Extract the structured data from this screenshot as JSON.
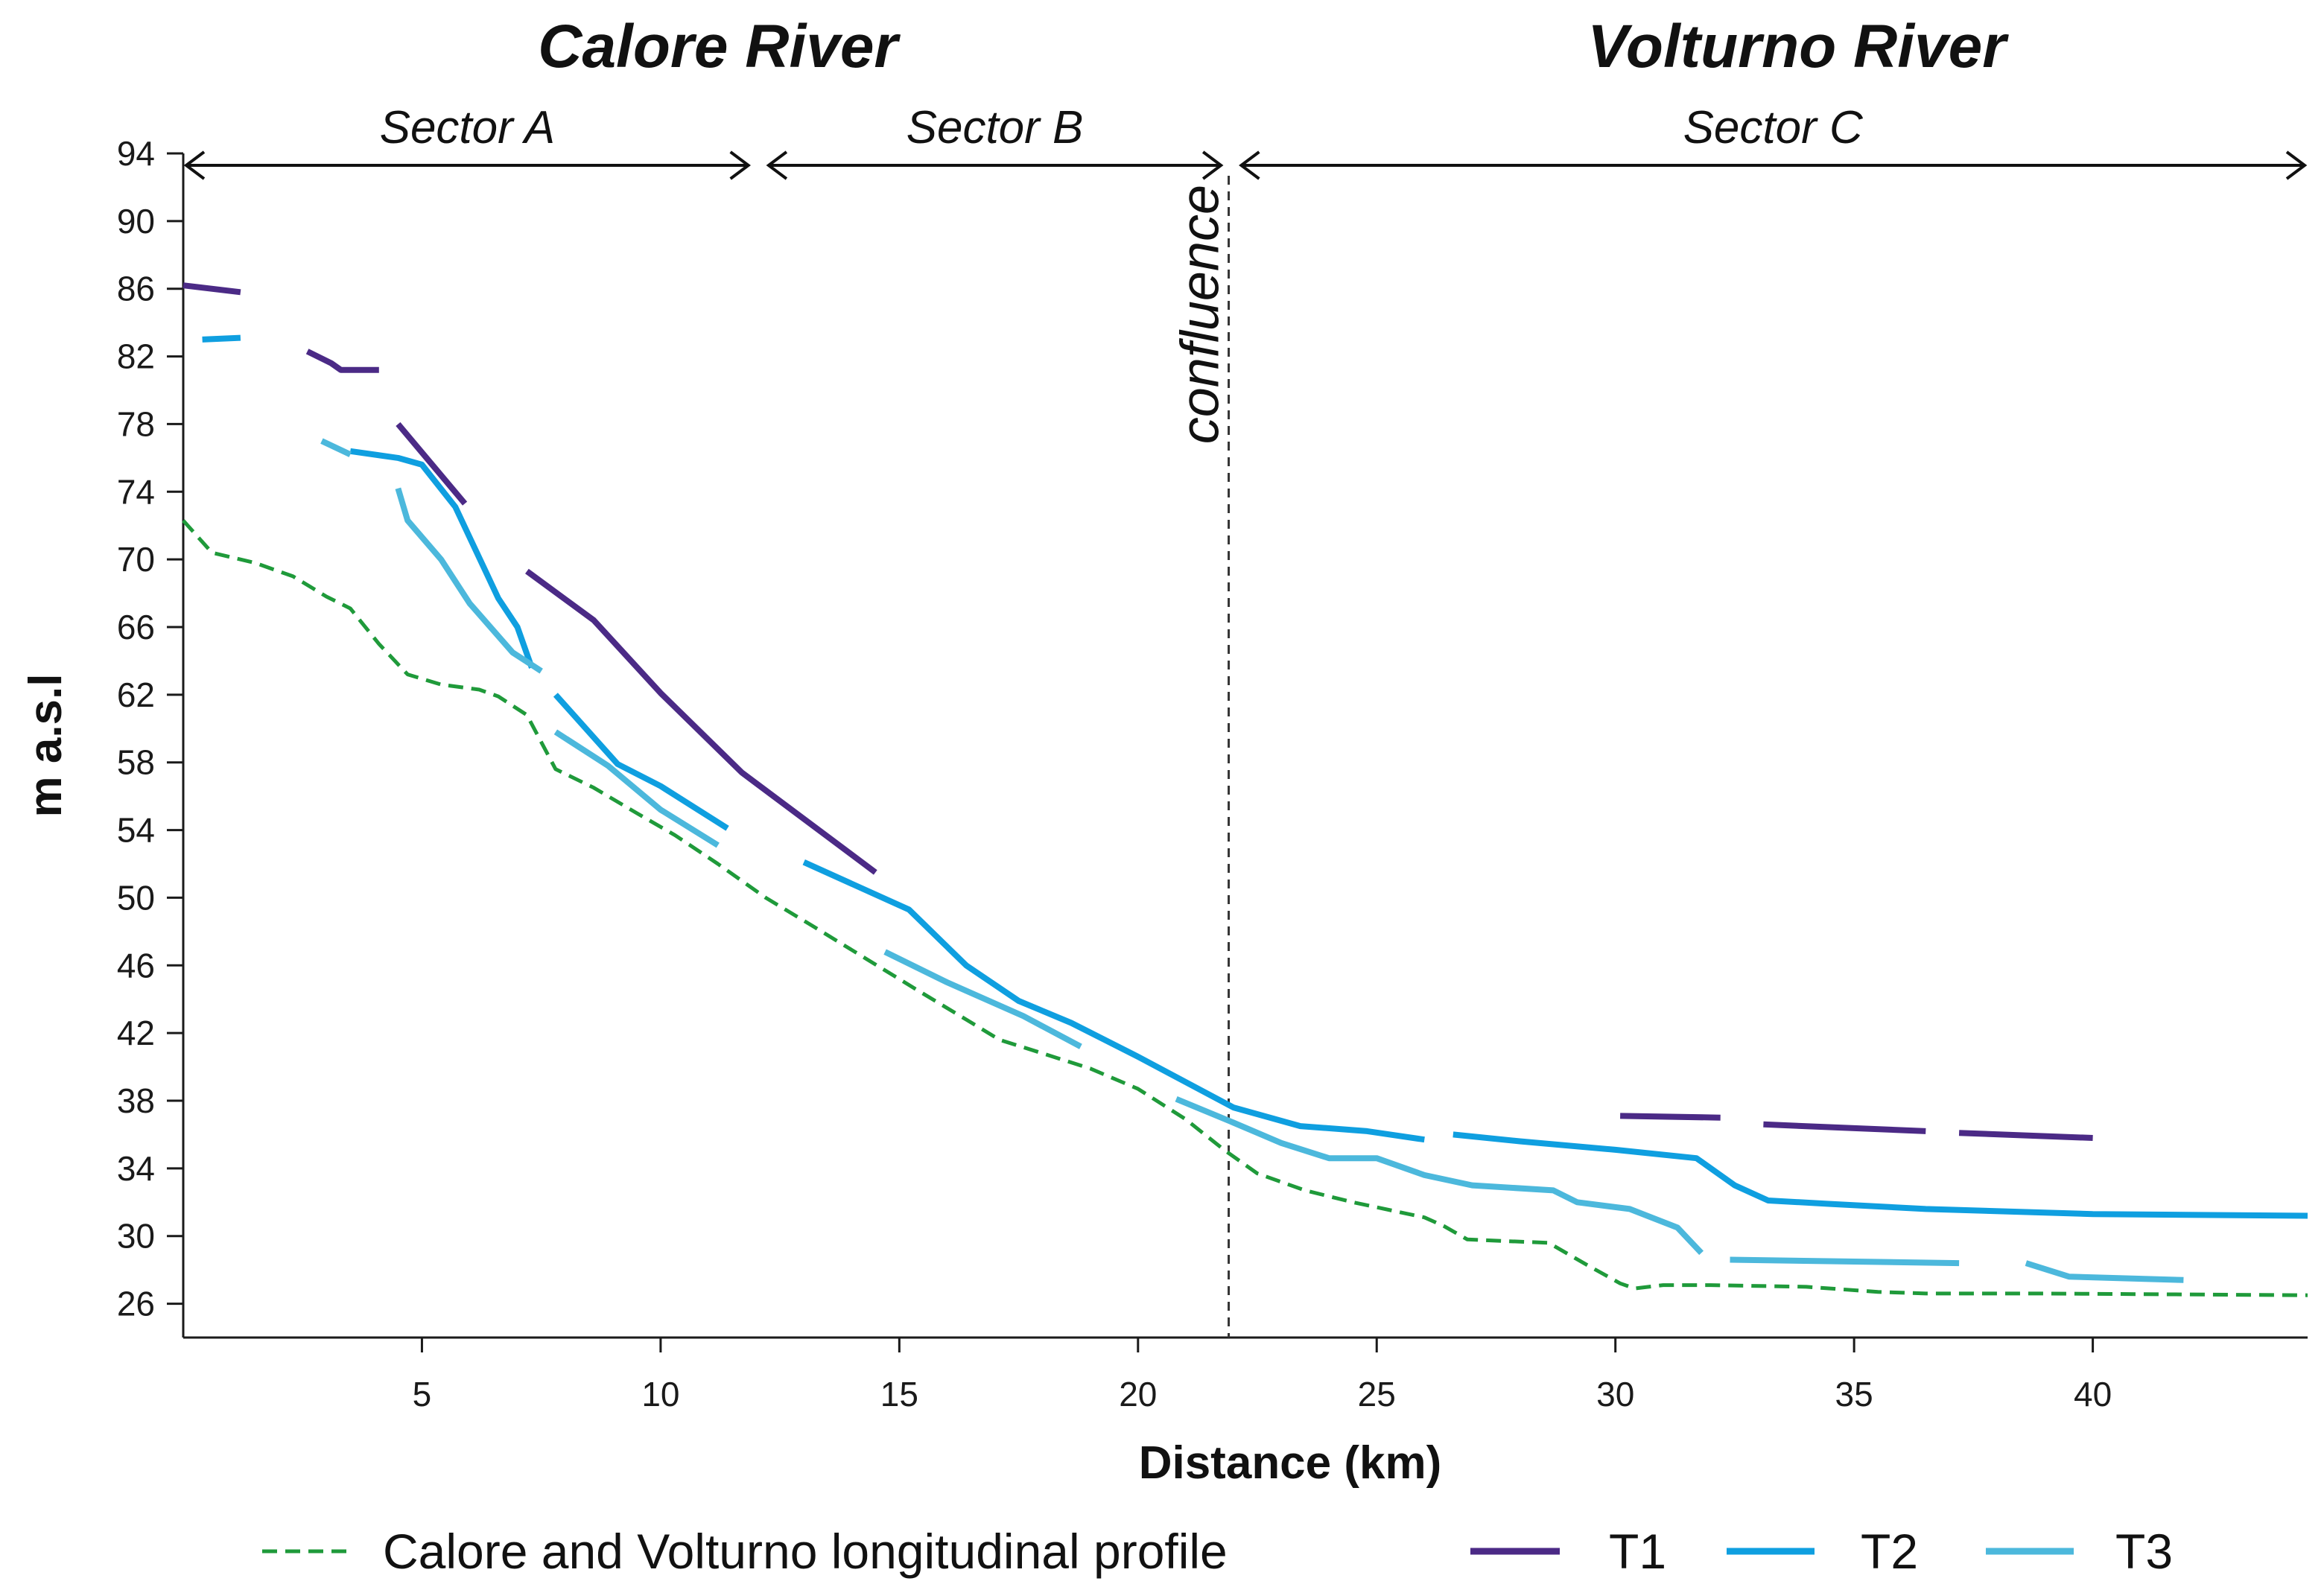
{
  "chart_data": {
    "type": "line",
    "title": "",
    "xlabel": "Distance (km)",
    "ylabel": "m a.s.l",
    "xlim": [
      0,
      44.5
    ],
    "ylim": [
      24,
      94
    ],
    "x_ticks": [
      5,
      10,
      15,
      20,
      25,
      30,
      35,
      40
    ],
    "y_ticks": [
      26,
      30,
      34,
      38,
      42,
      46,
      50,
      54,
      58,
      62,
      66,
      70,
      74,
      78,
      82,
      86,
      90,
      94
    ],
    "grid": false,
    "legend_position": "bottom",
    "river_labels": [
      {
        "text": "Calore River",
        "x": 11.2
      },
      {
        "text": "Volturno River",
        "x": 33.8
      }
    ],
    "sectors": [
      {
        "label": "Sector A",
        "x_start": 0,
        "x_end": 11.9
      },
      {
        "label": "Sector  B",
        "x_start": 12.2,
        "x_end": 21.8
      },
      {
        "label": "Sector  C",
        "x_start": 22.1,
        "x_end": 44.5
      }
    ],
    "confluence": {
      "label": "confluence",
      "x": 21.9
    },
    "series": [
      {
        "name": "Calore and Volturno longitudinal profile",
        "color": "#1f9a3a",
        "dash": "dashed",
        "segments": [
          [
            [
              0,
              72.3
            ],
            [
              0.6,
              70.4
            ],
            [
              1.5,
              69.8
            ],
            [
              2.3,
              69.0
            ],
            [
              3.0,
              67.8
            ],
            [
              3.5,
              67.1
            ],
            [
              4.1,
              65.0
            ],
            [
              4.7,
              63.2
            ],
            [
              5.4,
              62.6
            ],
            [
              6.2,
              62.3
            ],
            [
              6.6,
              61.9
            ],
            [
              7.2,
              60.8
            ],
            [
              7.8,
              57.6
            ],
            [
              8.6,
              56.5
            ],
            [
              9.5,
              55.0
            ],
            [
              10.3,
              53.7
            ],
            [
              11.2,
              52.0
            ],
            [
              12.2,
              50.0
            ],
            [
              13.2,
              48.3
            ],
            [
              14.3,
              46.4
            ],
            [
              15.4,
              44.5
            ],
            [
              16.4,
              42.8
            ],
            [
              17.1,
              41.6
            ],
            [
              18.0,
              40.8
            ],
            [
              19.0,
              39.9
            ],
            [
              20.0,
              38.7
            ],
            [
              21.0,
              36.9
            ],
            [
              21.8,
              35.1
            ],
            [
              22.5,
              33.7
            ],
            [
              23.5,
              32.7
            ],
            [
              24.5,
              32.0
            ],
            [
              25.5,
              31.4
            ],
            [
              26.0,
              31.1
            ],
            [
              26.4,
              30.6
            ],
            [
              26.9,
              29.8
            ],
            [
              27.7,
              29.7
            ],
            [
              28.6,
              29.6
            ],
            [
              29.4,
              28.3
            ],
            [
              30.1,
              27.2
            ],
            [
              30.4,
              26.9
            ],
            [
              31.0,
              27.1
            ],
            [
              32.0,
              27.1
            ],
            [
              34.0,
              27.0
            ],
            [
              35.5,
              26.7
            ],
            [
              36.5,
              26.6
            ],
            [
              39.0,
              26.6
            ],
            [
              44.5,
              26.5
            ]
          ]
        ]
      },
      {
        "name": "T1",
        "color": "#4b2a86",
        "dash": "solid",
        "segments": [
          [
            [
              0,
              86.2
            ],
            [
              1.2,
              85.8
            ]
          ],
          [
            [
              2.6,
              82.3
            ],
            [
              3.1,
              81.6
            ],
            [
              3.3,
              81.2
            ],
            [
              4.1,
              81.2
            ]
          ],
          [
            [
              4.5,
              78.0
            ],
            [
              5.9,
              73.3
            ]
          ],
          [
            [
              7.2,
              69.3
            ],
            [
              8.6,
              66.4
            ],
            [
              10.0,
              62.1
            ],
            [
              11.7,
              57.4
            ],
            [
              14.5,
              51.5
            ]
          ],
          [
            [
              30.1,
              37.1
            ],
            [
              32.2,
              37.0
            ]
          ],
          [
            [
              33.1,
              36.6
            ],
            [
              36.5,
              36.2
            ]
          ],
          [
            [
              37.2,
              36.1
            ],
            [
              40.0,
              35.8
            ]
          ]
        ]
      },
      {
        "name": "T2",
        "color": "#0f9fe0",
        "dash": "solid",
        "segments": [
          [
            [
              0.4,
              83.0
            ],
            [
              1.2,
              83.1
            ]
          ],
          [
            [
              3.5,
              76.4
            ],
            [
              4.5,
              76.0
            ],
            [
              5.0,
              75.6
            ],
            [
              5.7,
              73.1
            ],
            [
              6.6,
              67.7
            ],
            [
              7.0,
              66.0
            ],
            [
              7.3,
              63.6
            ]
          ],
          [
            [
              7.8,
              62.0
            ],
            [
              9.1,
              57.9
            ],
            [
              10.0,
              56.6
            ],
            [
              11.4,
              54.1
            ]
          ],
          [
            [
              13.0,
              52.1
            ],
            [
              15.2,
              49.3
            ],
            [
              16.4,
              46.0
            ],
            [
              17.5,
              43.9
            ],
            [
              18.6,
              42.6
            ],
            [
              20.0,
              40.6
            ],
            [
              22.0,
              37.6
            ],
            [
              23.4,
              36.5
            ],
            [
              24.8,
              36.2
            ],
            [
              26.0,
              35.7
            ]
          ],
          [
            [
              26.6,
              36.0
            ],
            [
              28.0,
              35.6
            ],
            [
              30.0,
              35.1
            ],
            [
              31.7,
              34.6
            ],
            [
              32.5,
              33.0
            ],
            [
              33.2,
              32.1
            ],
            [
              34.5,
              31.9
            ],
            [
              36.5,
              31.6
            ],
            [
              40.0,
              31.3
            ],
            [
              44.5,
              31.2
            ]
          ]
        ]
      },
      {
        "name": "T3",
        "color": "#4cb8dc",
        "dash": "solid",
        "segments": [
          [
            [
              2.9,
              77.0
            ],
            [
              3.5,
              76.2
            ]
          ],
          [
            [
              4.5,
              74.2
            ],
            [
              4.7,
              72.3
            ],
            [
              5.4,
              70.0
            ],
            [
              6.0,
              67.4
            ],
            [
              6.9,
              64.5
            ],
            [
              7.5,
              63.4
            ]
          ],
          [
            [
              7.8,
              59.8
            ],
            [
              8.9,
              57.8
            ],
            [
              10.0,
              55.2
            ],
            [
              11.2,
              53.1
            ]
          ],
          [
            [
              14.7,
              46.8
            ],
            [
              16.0,
              45.0
            ],
            [
              17.6,
              43.0
            ],
            [
              18.8,
              41.2
            ]
          ],
          [
            [
              20.8,
              38.1
            ],
            [
              22.0,
              36.7
            ],
            [
              23.0,
              35.5
            ],
            [
              24.0,
              34.6
            ],
            [
              25.0,
              34.6
            ],
            [
              26.0,
              33.6
            ],
            [
              27.0,
              33.0
            ],
            [
              28.7,
              32.7
            ],
            [
              29.2,
              32.0
            ],
            [
              30.3,
              31.6
            ],
            [
              31.3,
              30.5
            ],
            [
              31.8,
              29.0
            ]
          ],
          [
            [
              32.4,
              28.6
            ],
            [
              37.2,
              28.4
            ]
          ],
          [
            [
              38.6,
              28.4
            ],
            [
              39.5,
              27.6
            ],
            [
              41.9,
              27.4
            ]
          ]
        ]
      }
    ]
  }
}
